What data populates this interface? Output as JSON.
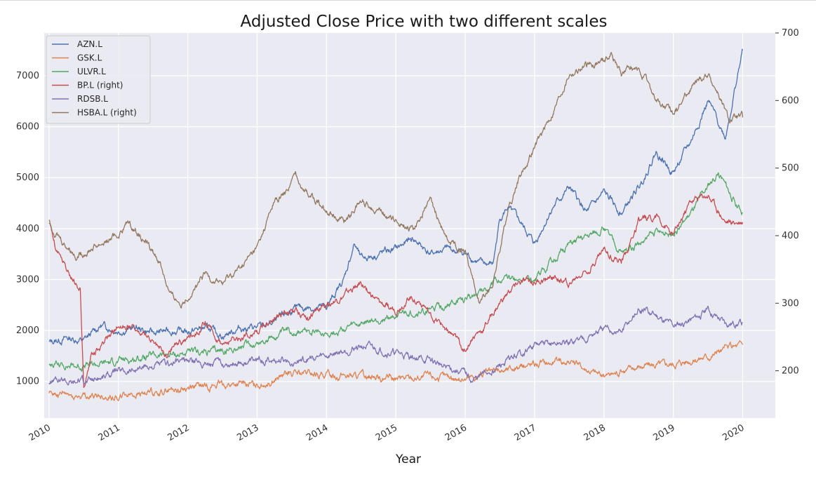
{
  "chart_data": {
    "type": "line",
    "title": "Adjusted Close Price with two different scales",
    "xlabel": "Year",
    "ylabel": "",
    "xlim": [
      2009.93,
      2020.47
    ],
    "ylim_left": [
      280,
      7840
    ],
    "ylim_right": [
      130,
      700
    ],
    "y_ticks_left": [
      1000,
      2000,
      3000,
      4000,
      5000,
      6000,
      7000
    ],
    "y_ticks_right": [
      200,
      300,
      400,
      500,
      600,
      700
    ],
    "x_ticks": [
      {
        "value": 2010,
        "label": "2010"
      },
      {
        "value": 2011,
        "label": "2011"
      },
      {
        "value": 2012,
        "label": "2012"
      },
      {
        "value": 2013,
        "label": "2013"
      },
      {
        "value": 2014,
        "label": "2014"
      },
      {
        "value": 2015,
        "label": "2015"
      },
      {
        "value": 2016,
        "label": "2016"
      },
      {
        "value": 2017,
        "label": "2017"
      },
      {
        "value": 2018,
        "label": "2018"
      },
      {
        "value": 2019,
        "label": "2019"
      },
      {
        "value": 2020,
        "label": "2020"
      }
    ],
    "grid": true,
    "legend_position": "top-left",
    "series": [
      {
        "name": "AZN.L",
        "axis": "left",
        "color": "#4c72b0",
        "x": [
          2010.0,
          2010.25,
          2010.5,
          2010.75,
          2011.0,
          2011.25,
          2011.5,
          2011.75,
          2012.0,
          2012.25,
          2012.5,
          2012.75,
          2013.0,
          2013.25,
          2013.5,
          2013.75,
          2014.0,
          2014.25,
          2014.4,
          2014.5,
          2014.75,
          2015.0,
          2015.25,
          2015.5,
          2015.75,
          2016.0,
          2016.25,
          2016.4,
          2016.5,
          2016.6,
          2016.75,
          2017.0,
          2017.25,
          2017.5,
          2017.75,
          2018.0,
          2018.25,
          2018.5,
          2018.75,
          2019.0,
          2019.25,
          2019.5,
          2019.75,
          2020.0
        ],
        "values": [
          1760,
          1850,
          1800,
          2100,
          2000,
          2050,
          1950,
          2000,
          1980,
          2050,
          1900,
          2050,
          2050,
          2150,
          2400,
          2450,
          2450,
          3000,
          3700,
          3400,
          3500,
          3600,
          3800,
          3500,
          3600,
          3500,
          3300,
          3300,
          4200,
          4400,
          4200,
          3700,
          4400,
          4800,
          4300,
          4700,
          4300,
          4800,
          5500,
          5100,
          5700,
          6500,
          5800,
          7500
        ]
      },
      {
        "name": "GSK.L",
        "axis": "left",
        "color": "#dd8452",
        "x": [
          2010.0,
          2010.5,
          2011.0,
          2011.5,
          2012.0,
          2012.5,
          2013.0,
          2013.5,
          2014.0,
          2014.5,
          2015.0,
          2015.5,
          2016.0,
          2016.5,
          2017.0,
          2017.5,
          2018.0,
          2018.5,
          2019.0,
          2019.5,
          2020.0
        ],
        "values": [
          760,
          700,
          720,
          780,
          880,
          950,
          930,
          1150,
          1130,
          1100,
          1050,
          1100,
          1050,
          1200,
          1350,
          1400,
          1100,
          1300,
          1350,
          1500,
          1720
        ]
      },
      {
        "name": "ULVR.L",
        "axis": "left",
        "color": "#55a868",
        "x": [
          2010.0,
          2010.5,
          2011.0,
          2011.5,
          2012.0,
          2012.5,
          2013.0,
          2013.5,
          2014.0,
          2014.5,
          2015.0,
          2015.5,
          2016.0,
          2016.5,
          2017.0,
          2017.5,
          2018.0,
          2018.25,
          2018.5,
          2018.75,
          2019.0,
          2019.25,
          2019.5,
          2019.65,
          2019.8,
          2020.0
        ],
        "values": [
          1350,
          1300,
          1400,
          1500,
          1550,
          1600,
          1750,
          2000,
          1950,
          2100,
          2300,
          2400,
          2600,
          3000,
          3000,
          3700,
          4000,
          3500,
          3700,
          3900,
          3900,
          4300,
          4800,
          5100,
          4700,
          4300
        ]
      },
      {
        "name": "BP.L (right)",
        "axis": "right",
        "color": "#c44e52",
        "x": [
          2010.0,
          2010.1,
          2010.3,
          2010.45,
          2010.5,
          2010.6,
          2010.8,
          2011.0,
          2011.25,
          2011.5,
          2011.7,
          2011.8,
          2012.0,
          2012.25,
          2012.5,
          2012.75,
          2013.0,
          2013.25,
          2013.5,
          2013.75,
          2014.0,
          2014.25,
          2014.5,
          2014.75,
          2015.0,
          2015.2,
          2015.4,
          2015.5,
          2015.75,
          2016.0,
          2016.1,
          2016.25,
          2016.5,
          2016.75,
          2017.0,
          2017.25,
          2017.5,
          2017.75,
          2018.0,
          2018.25,
          2018.5,
          2018.75,
          2019.0,
          2019.25,
          2019.5,
          2019.75,
          2020.0
        ],
        "values": [
          420,
          380,
          340,
          320,
          170,
          220,
          240,
          270,
          260,
          240,
          220,
          240,
          250,
          270,
          240,
          250,
          260,
          280,
          290,
          280,
          300,
          310,
          330,
          300,
          290,
          310,
          300,
          280,
          260,
          230,
          250,
          260,
          300,
          330,
          330,
          340,
          330,
          350,
          380,
          360,
          420,
          430,
          400,
          450,
          460,
          420,
          420
        ]
      },
      {
        "name": "RDSB.L",
        "axis": "left",
        "color": "#8172b3",
        "x": [
          2010.0,
          2010.5,
          2011.0,
          2011.5,
          2012.0,
          2012.5,
          2013.0,
          2013.5,
          2014.0,
          2014.5,
          2015.0,
          2015.5,
          2016.0,
          2016.1,
          2016.5,
          2017.0,
          2017.5,
          2018.0,
          2018.25,
          2018.5,
          2018.75,
          2019.0,
          2019.25,
          2019.5,
          2019.75,
          2020.0
        ],
        "values": [
          1000,
          1000,
          1200,
          1300,
          1400,
          1350,
          1400,
          1400,
          1500,
          1700,
          1550,
          1400,
          1150,
          1000,
          1300,
          1700,
          1750,
          2000,
          1950,
          2400,
          2300,
          2100,
          2200,
          2400,
          2150,
          2150
        ]
      },
      {
        "name": "HSBA.L (right)",
        "axis": "right",
        "color": "#937860",
        "x": [
          2010.0,
          2010.2,
          2010.4,
          2010.6,
          2010.8,
          2011.0,
          2011.15,
          2011.4,
          2011.6,
          2011.75,
          2011.9,
          2012.0,
          2012.25,
          2012.5,
          2012.75,
          2013.0,
          2013.25,
          2013.4,
          2013.55,
          2013.75,
          2014.0,
          2014.25,
          2014.5,
          2014.75,
          2015.0,
          2015.25,
          2015.5,
          2015.75,
          2016.0,
          2016.2,
          2016.4,
          2016.6,
          2016.75,
          2017.0,
          2017.25,
          2017.5,
          2017.75,
          2018.0,
          2018.1,
          2018.25,
          2018.4,
          2018.6,
          2018.75,
          2019.0,
          2019.25,
          2019.5,
          2019.65,
          2019.8,
          2020.0
        ],
        "values": [
          420,
          390,
          370,
          380,
          390,
          400,
          420,
          390,
          360,
          310,
          300,
          310,
          340,
          330,
          350,
          380,
          450,
          460,
          490,
          460,
          440,
          420,
          450,
          440,
          420,
          410,
          450,
          390,
          380,
          300,
          330,
          430,
          480,
          530,
          580,
          640,
          650,
          660,
          670,
          640,
          650,
          630,
          600,
          580,
          620,
          640,
          610,
          570,
          575
        ]
      }
    ]
  }
}
